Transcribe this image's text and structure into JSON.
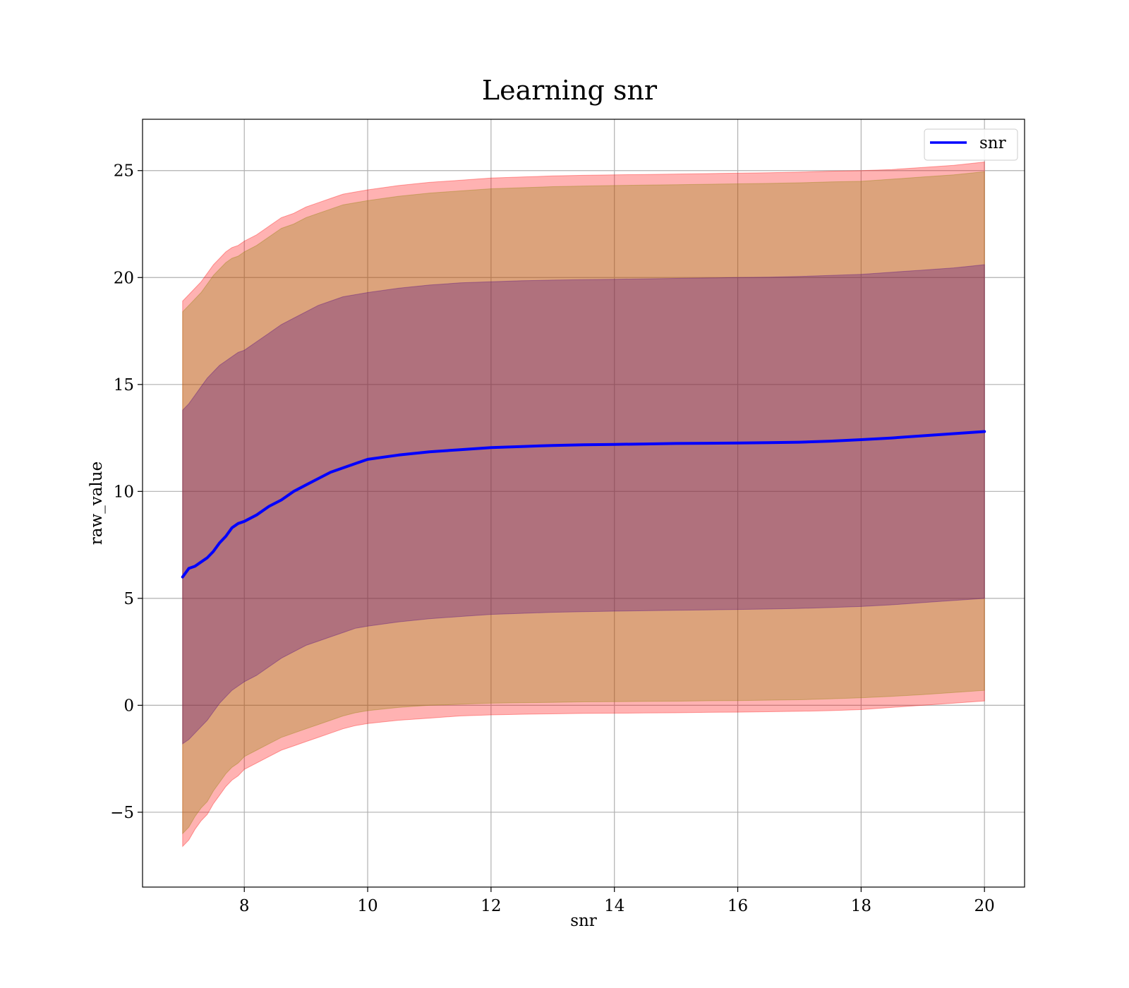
{
  "chart_data": {
    "type": "area",
    "title": "Learning snr",
    "xlabel": "snr",
    "ylabel": "raw_value",
    "xlim": [
      6.35,
      20.65
    ],
    "ylim": [
      -8.5,
      27.4
    ],
    "xticks": [
      8,
      10,
      12,
      14,
      16,
      18,
      20
    ],
    "yticks": [
      -5,
      0,
      5,
      10,
      15,
      20,
      25
    ],
    "ytick_labels": [
      "−5",
      "0",
      "5",
      "10",
      "15",
      "20",
      "25"
    ],
    "grid": true,
    "legend_position": "top-right",
    "x": [
      7.0,
      7.1,
      7.2,
      7.3,
      7.4,
      7.5,
      7.6,
      7.7,
      7.8,
      7.9,
      8.0,
      8.2,
      8.4,
      8.6,
      8.8,
      9.0,
      9.2,
      9.4,
      9.6,
      9.8,
      10.0,
      10.5,
      11.0,
      11.5,
      12.0,
      12.5,
      13.0,
      13.5,
      14.0,
      14.5,
      15.0,
      15.5,
      16.0,
      16.5,
      17.0,
      17.5,
      18.0,
      18.5,
      19.0,
      19.5,
      20.0
    ],
    "series": [
      {
        "name": "snr",
        "color": "#0000ff",
        "values": [
          6.0,
          6.4,
          6.5,
          6.7,
          6.9,
          7.2,
          7.6,
          7.9,
          8.3,
          8.5,
          8.6,
          8.9,
          9.3,
          9.6,
          10.0,
          10.3,
          10.6,
          10.9,
          11.1,
          11.3,
          11.5,
          11.7,
          11.85,
          11.95,
          12.05,
          12.1,
          12.15,
          12.18,
          12.2,
          12.22,
          12.24,
          12.25,
          12.26,
          12.28,
          12.3,
          12.35,
          12.42,
          12.5,
          12.6,
          12.7,
          12.8
        ]
      }
    ],
    "bands": [
      {
        "color": "#ff0000",
        "opacity": 0.3,
        "lower": [
          -6.6,
          -6.3,
          -5.8,
          -5.4,
          -5.1,
          -4.6,
          -4.2,
          -3.8,
          -3.5,
          -3.3,
          -3.0,
          -2.7,
          -2.4,
          -2.1,
          -1.9,
          -1.7,
          -1.5,
          -1.3,
          -1.1,
          -0.95,
          -0.85,
          -0.7,
          -0.6,
          -0.5,
          -0.45,
          -0.42,
          -0.4,
          -0.38,
          -0.37,
          -0.36,
          -0.35,
          -0.33,
          -0.32,
          -0.3,
          -0.28,
          -0.25,
          -0.2,
          -0.1,
          0.0,
          0.1,
          0.2
        ],
        "upper": [
          18.9,
          19.2,
          19.5,
          19.8,
          20.2,
          20.6,
          20.9,
          21.2,
          21.4,
          21.5,
          21.7,
          22.0,
          22.4,
          22.8,
          23.0,
          23.3,
          23.5,
          23.7,
          23.9,
          24.0,
          24.1,
          24.3,
          24.45,
          24.55,
          24.65,
          24.7,
          24.75,
          24.78,
          24.8,
          24.82,
          24.84,
          24.86,
          24.88,
          24.9,
          24.93,
          24.97,
          25.0,
          25.05,
          25.15,
          25.25,
          25.4
        ]
      },
      {
        "color": "#8b8000",
        "opacity": 0.3,
        "lower": [
          -6.0,
          -5.7,
          -5.2,
          -4.8,
          -4.5,
          -4.0,
          -3.6,
          -3.2,
          -2.9,
          -2.7,
          -2.4,
          -2.1,
          -1.8,
          -1.5,
          -1.3,
          -1.1,
          -0.9,
          -0.7,
          -0.5,
          -0.35,
          -0.25,
          -0.1,
          0.0,
          0.05,
          0.1,
          0.12,
          0.14,
          0.16,
          0.17,
          0.18,
          0.19,
          0.21,
          0.22,
          0.24,
          0.26,
          0.3,
          0.35,
          0.42,
          0.5,
          0.6,
          0.7
        ],
        "upper": [
          18.4,
          18.7,
          19.0,
          19.3,
          19.7,
          20.1,
          20.4,
          20.7,
          20.9,
          21.0,
          21.2,
          21.5,
          21.9,
          22.3,
          22.5,
          22.8,
          23.0,
          23.2,
          23.4,
          23.5,
          23.6,
          23.8,
          23.95,
          24.05,
          24.15,
          24.2,
          24.25,
          24.28,
          24.3,
          24.32,
          24.34,
          24.36,
          24.38,
          24.4,
          24.43,
          24.47,
          24.5,
          24.6,
          24.7,
          24.8,
          24.95
        ]
      },
      {
        "color": "#4b0082",
        "opacity": 0.3,
        "lower": [
          -1.8,
          -1.6,
          -1.3,
          -1.0,
          -0.7,
          -0.3,
          0.1,
          0.4,
          0.7,
          0.9,
          1.1,
          1.4,
          1.8,
          2.2,
          2.5,
          2.8,
          3.0,
          3.2,
          3.4,
          3.6,
          3.7,
          3.9,
          4.05,
          4.15,
          4.25,
          4.3,
          4.35,
          4.38,
          4.4,
          4.42,
          4.44,
          4.46,
          4.48,
          4.5,
          4.53,
          4.57,
          4.62,
          4.7,
          4.8,
          4.9,
          5.0
        ],
        "upper": [
          13.8,
          14.1,
          14.5,
          14.9,
          15.3,
          15.6,
          15.9,
          16.1,
          16.3,
          16.5,
          16.6,
          17.0,
          17.4,
          17.8,
          18.1,
          18.4,
          18.7,
          18.9,
          19.1,
          19.2,
          19.3,
          19.5,
          19.65,
          19.75,
          19.8,
          19.85,
          19.88,
          19.9,
          19.92,
          19.94,
          19.96,
          19.98,
          20.0,
          20.02,
          20.05,
          20.1,
          20.15,
          20.25,
          20.35,
          20.45,
          20.6
        ]
      }
    ]
  }
}
